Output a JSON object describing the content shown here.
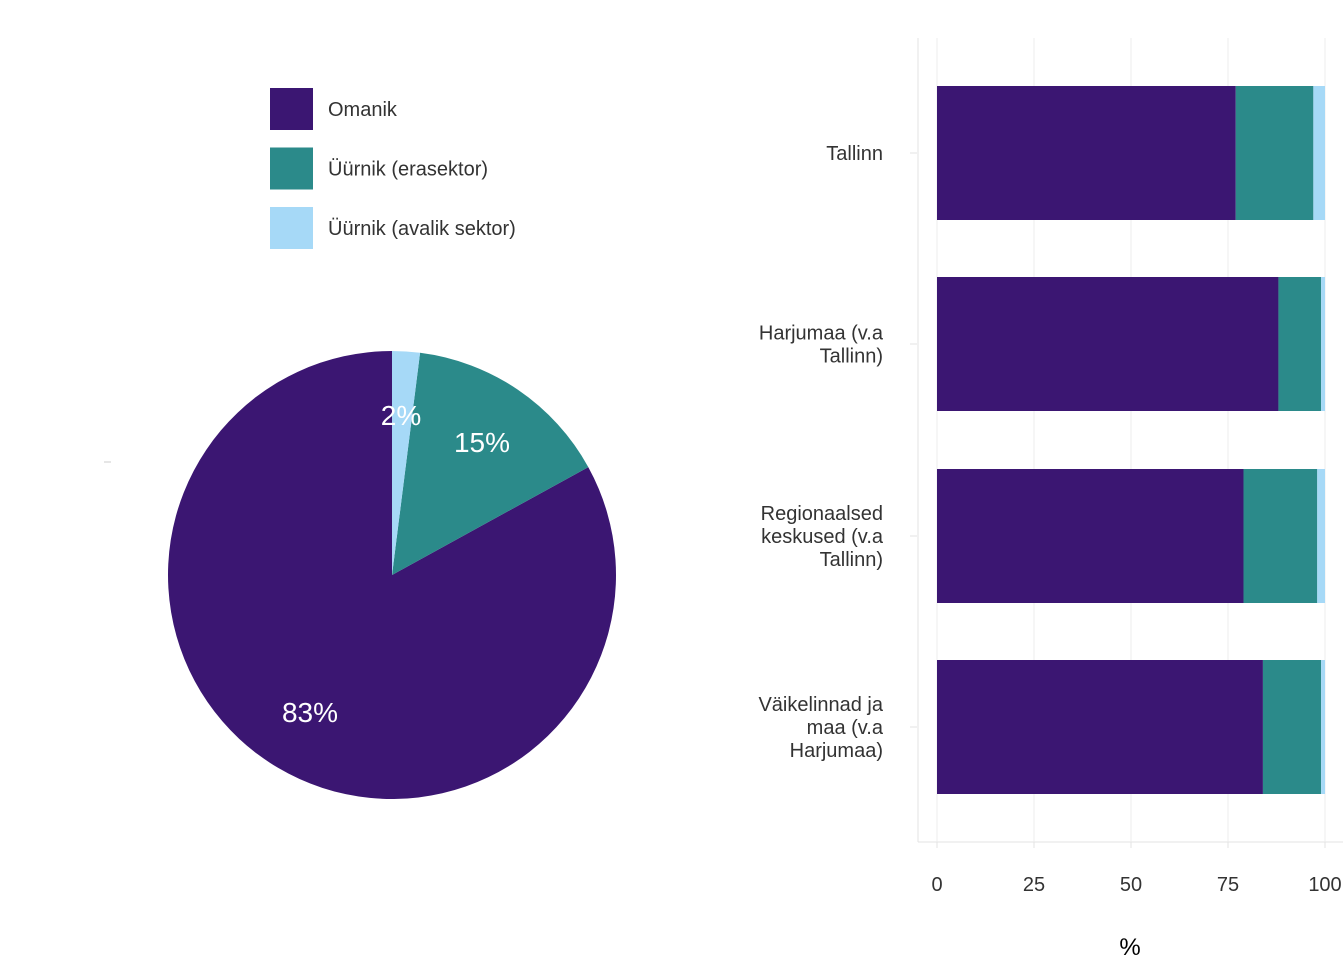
{
  "legend": {
    "placement": "top",
    "items": [
      {
        "label": "Omanik",
        "color": "#3b1672"
      },
      {
        "label": "Üürnik (erasektor)",
        "color": "#2b8a8a"
      },
      {
        "label": "Üürnik (avalik sektor)",
        "color": "#a6d9f7"
      }
    ]
  },
  "chart_data": [
    {
      "type": "pie",
      "slices": [
        {
          "name": "Omanik",
          "value": 83,
          "label": "83%",
          "color": "#3b1672"
        },
        {
          "name": "Üürnik (erasektor)",
          "value": 15,
          "label": "15%",
          "color": "#2b8a8a"
        },
        {
          "name": "Üürnik (avalik sektor)",
          "value": 2,
          "label": "2%",
          "color": "#a6d9f7"
        }
      ]
    },
    {
      "type": "bar",
      "orientation": "horizontal",
      "stacked": true,
      "categories": [
        [
          "Tallinn"
        ],
        [
          "Harjumaa (v.a",
          "Tallinn)"
        ],
        [
          "Regionaalsed",
          "keskused (v.a",
          "Tallinn)"
        ],
        [
          "Väikelinnad ja",
          "maa (v.a",
          "Harjumaa)"
        ]
      ],
      "series": [
        {
          "name": "Omanik",
          "color": "#3b1672",
          "values": [
            77,
            88,
            79,
            84
          ]
        },
        {
          "name": "Üürnik (erasektor)",
          "color": "#2b8a8a",
          "values": [
            20,
            11,
            19,
            15
          ]
        },
        {
          "name": "Üürnik (avalik sektor)",
          "color": "#a6d9f7",
          "values": [
            3,
            1,
            2,
            1
          ]
        }
      ],
      "xlabel": "%",
      "xlim": [
        0,
        100
      ],
      "xticks": [
        0,
        25,
        50,
        75,
        100
      ],
      "grid": true
    }
  ]
}
